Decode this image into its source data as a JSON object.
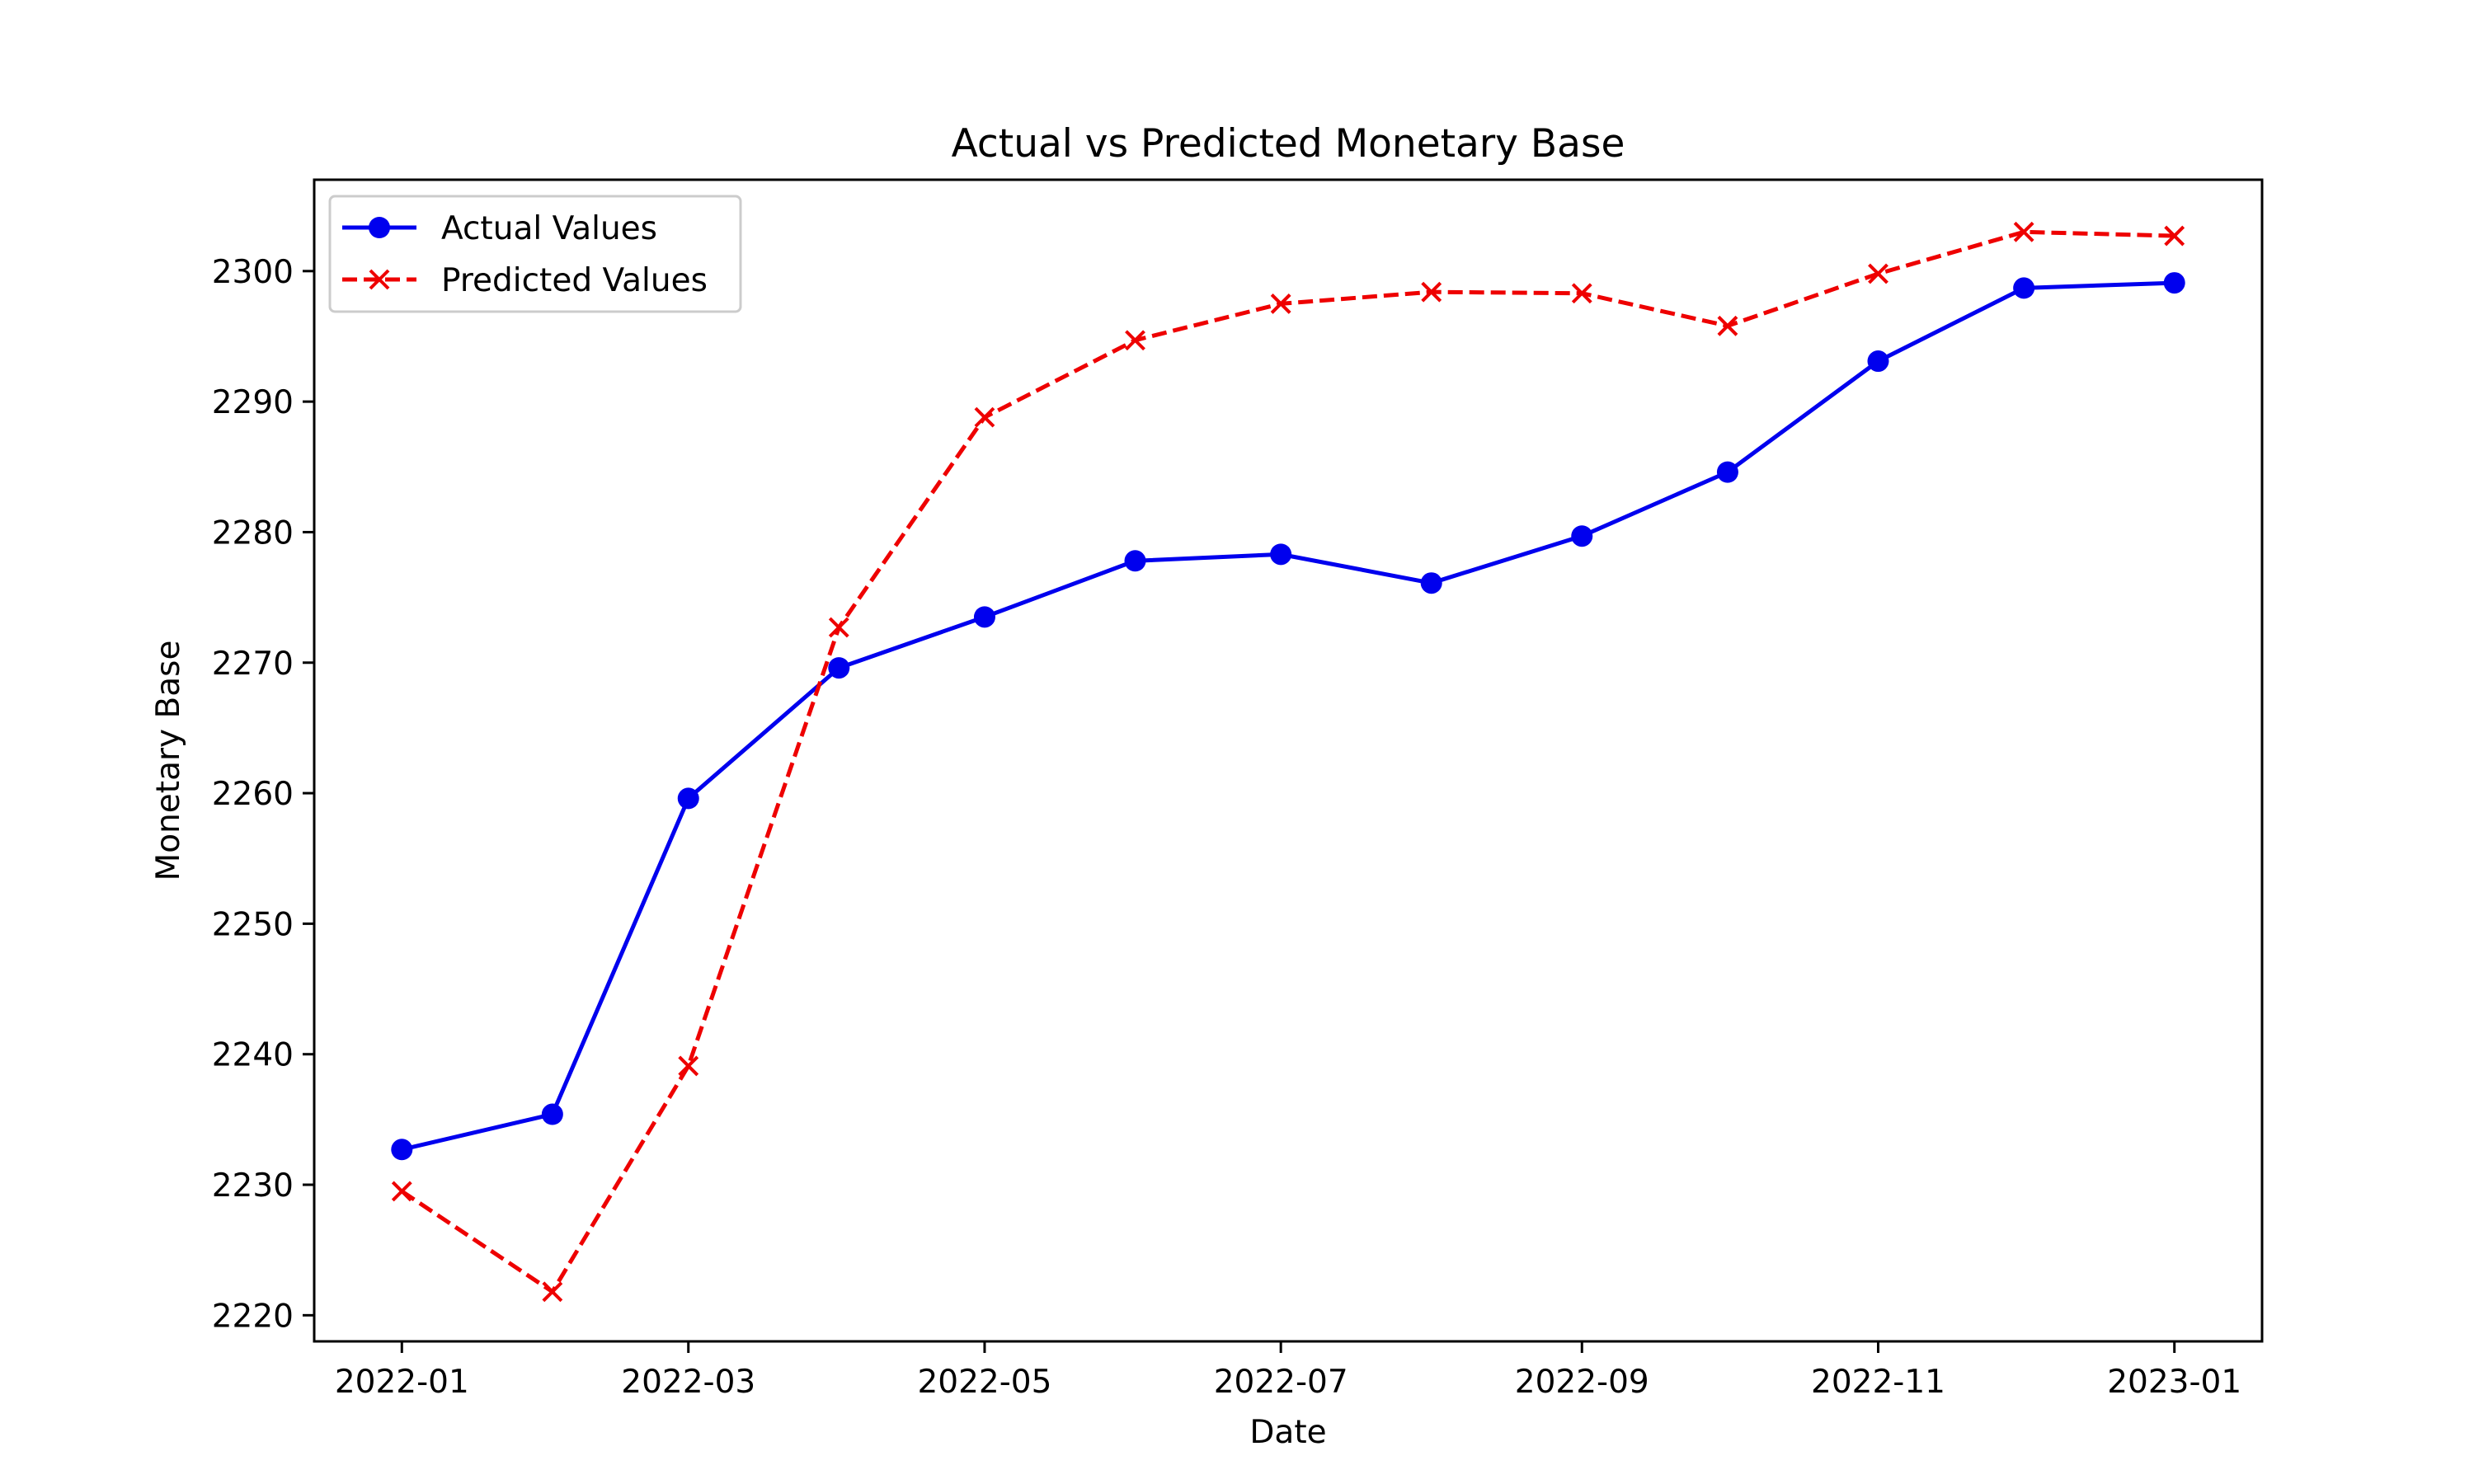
{
  "chart_data": {
    "type": "line",
    "title": "Actual vs Predicted Monetary Base",
    "xlabel": "Date",
    "ylabel": "Monetary Base",
    "x": [
      "2022-01-01",
      "2022-02-01",
      "2022-03-01",
      "2022-04-01",
      "2022-05-01",
      "2022-06-01",
      "2022-07-01",
      "2022-08-01",
      "2022-09-01",
      "2022-10-01",
      "2022-11-01",
      "2022-12-01",
      "2023-01-01"
    ],
    "x_ticks": [
      "2022-01",
      "2022-03",
      "2022-05",
      "2022-07",
      "2022-09",
      "2022-11",
      "2023-01"
    ],
    "ylim": [
      2218,
      2307
    ],
    "y_ticks": [
      2220,
      2230,
      2240,
      2250,
      2260,
      2270,
      2280,
      2290,
      2300
    ],
    "grid": false,
    "legend_position": "upper left",
    "series": [
      {
        "name": "Actual Values",
        "color": "#0000ee",
        "line_style": "solid",
        "marker": "circle",
        "values": [
          2232.7,
          2235.4,
          2259.6,
          2269.6,
          2273.5,
          2277.8,
          2278.3,
          2276.1,
          2279.7,
          2284.6,
          2293.1,
          2298.7,
          2299.1
        ]
      },
      {
        "name": "Predicted Values",
        "color": "#ee0000",
        "line_style": "dashed",
        "marker": "x",
        "values": [
          2229.5,
          2221.8,
          2239.1,
          2272.7,
          2288.8,
          2294.7,
          2297.5,
          2298.4,
          2298.3,
          2295.8,
          2299.8,
          2303.0,
          2302.7
        ]
      }
    ]
  }
}
